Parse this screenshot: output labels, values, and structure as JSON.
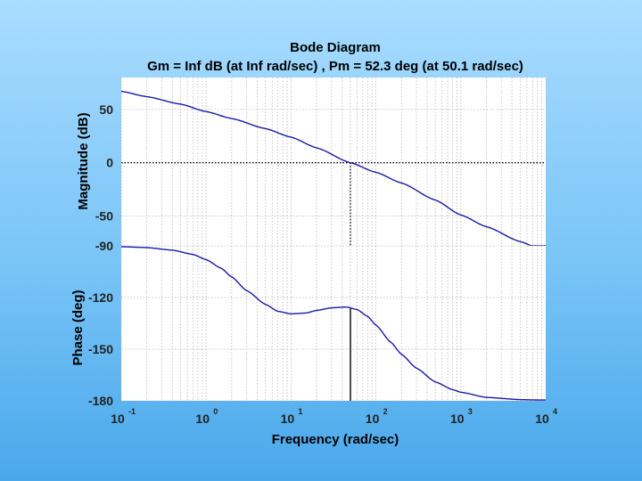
{
  "chart_data": {
    "type": "line",
    "title": "Bode Diagram",
    "subtitle": "Gm = Inf dB (at Inf rad/sec) ,  Pm = 52.3 deg (at 50.1 rad/sec)",
    "xlabel": "Frequency  (rad/sec)",
    "xscale": "log",
    "xlim": [
      0.1,
      10000
    ],
    "x_ticks": [
      {
        "base": "10",
        "exp": "-1"
      },
      {
        "base": "10",
        "exp": "0"
      },
      {
        "base": "10",
        "exp": "1"
      },
      {
        "base": "10",
        "exp": "2"
      },
      {
        "base": "10",
        "exp": "3"
      },
      {
        "base": "10",
        "exp": "4"
      }
    ],
    "crossover_frequency": 50.1,
    "magnitude": {
      "ylabel": "Magnitude (dB)",
      "ylim": [
        -78,
        80
      ],
      "y_ticks": [
        "50",
        "0",
        "-50"
      ],
      "y_tick_values": [
        50,
        0,
        -50
      ],
      "reference_line": 0,
      "color": "#1a1aa6",
      "x": [
        0.1,
        0.2,
        0.5,
        1,
        2,
        5,
        10,
        20,
        50.1,
        100,
        200,
        500,
        1000,
        2000,
        5000,
        8000
      ],
      "y": [
        67,
        62,
        55,
        48,
        41.5,
        32,
        24,
        14,
        0,
        -9,
        -19,
        -35,
        -49,
        -60,
        -74,
        -80
      ]
    },
    "phase": {
      "ylabel": "Phase (deg)",
      "ylim": [
        -180,
        -90
      ],
      "y_ticks": [
        "-90",
        "-120",
        "-150",
        "-180"
      ],
      "y_tick_values": [
        -90,
        -120,
        -150,
        -180
      ],
      "color": "#1a1aa6",
      "x": [
        0.1,
        0.2,
        0.4,
        0.7,
        1,
        1.5,
        2,
        3,
        5,
        7,
        10,
        15,
        20,
        30,
        45,
        60,
        80,
        100,
        150,
        200,
        300,
        500,
        800,
        1000,
        2000,
        5000,
        8000
      ],
      "y": [
        -90.5,
        -91,
        -92.5,
        -95,
        -98,
        -103,
        -108,
        -116,
        -124,
        -128,
        -129.5,
        -129,
        -127.5,
        -126,
        -125.5,
        -127,
        -131,
        -136,
        -146,
        -153,
        -161,
        -169,
        -173.5,
        -175,
        -178,
        -179.3,
        -179.5
      ]
    }
  }
}
